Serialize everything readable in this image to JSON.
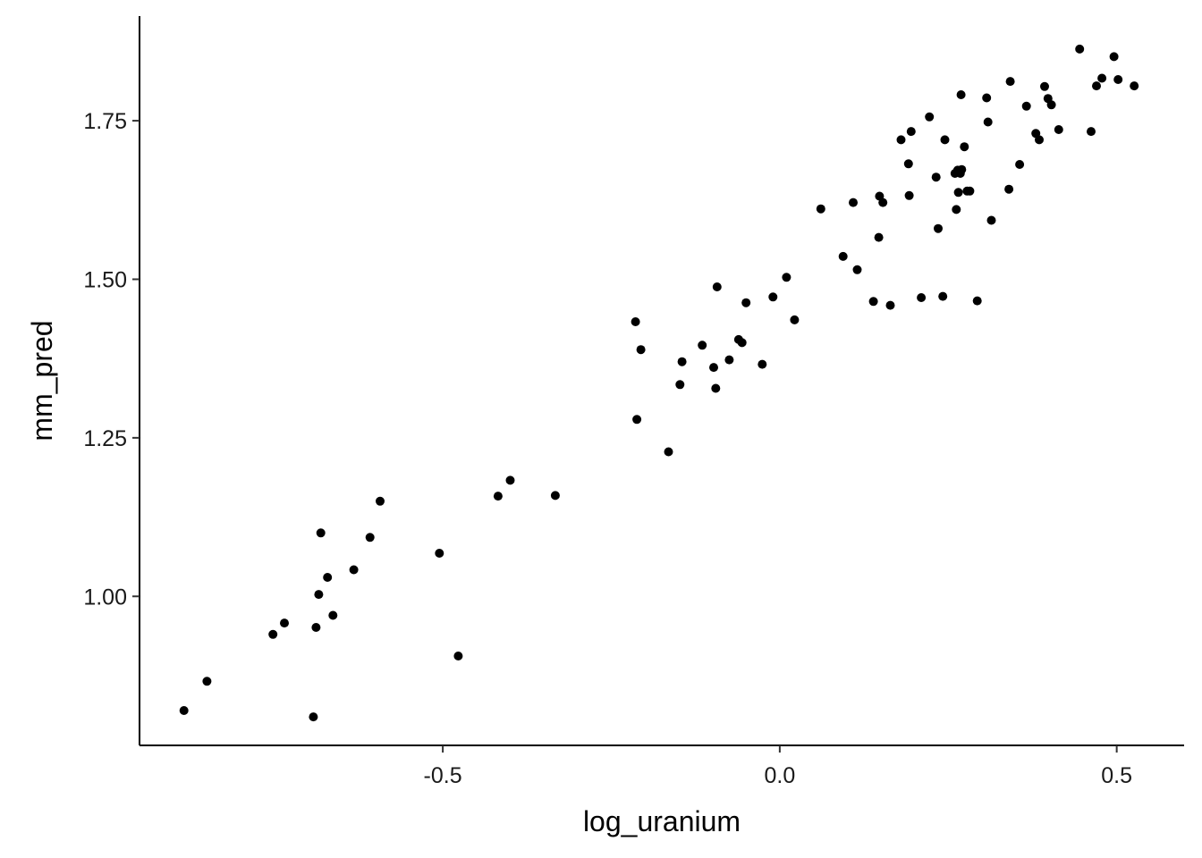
{
  "chart_data": {
    "type": "scatter",
    "xlabel": "log_uranium",
    "ylabel": "mm_pred",
    "xlim": [
      -0.95,
      0.6
    ],
    "ylim": [
      0.765,
      1.915
    ],
    "xticks": [
      -0.5,
      0.0,
      0.5
    ],
    "xtick_labels": [
      "-0.5",
      "0.0",
      "0.5"
    ],
    "yticks": [
      1.0,
      1.25,
      1.5,
      1.75
    ],
    "ytick_labels": [
      "1.00",
      "1.25",
      "1.50",
      "1.75"
    ],
    "grid": false,
    "point_color": "#000000",
    "series": [
      {
        "x": [
          -0.884,
          -0.85,
          -0.752,
          -0.735,
          -0.692,
          -0.688,
          -0.684,
          -0.681,
          -0.671,
          -0.663,
          -0.632,
          -0.608,
          -0.593,
          -0.505,
          -0.477,
          -0.418,
          -0.4,
          -0.333,
          -0.214,
          -0.212,
          -0.206,
          -0.165,
          -0.148,
          -0.145,
          -0.115,
          -0.098,
          -0.095,
          -0.093,
          -0.075,
          -0.061,
          -0.056,
          -0.05,
          -0.026,
          -0.01,
          0.01,
          0.022,
          0.061,
          0.094,
          0.109,
          0.115,
          0.139,
          0.147,
          0.148,
          0.153,
          0.164,
          0.18,
          0.191,
          0.192,
          0.195,
          0.21,
          0.222,
          0.232,
          0.235,
          0.242,
          0.245,
          0.26,
          0.262,
          0.264,
          0.265,
          0.268,
          0.269,
          0.27,
          0.274,
          0.278,
          0.282,
          0.293,
          0.307,
          0.309,
          0.314,
          0.34,
          0.342,
          0.356,
          0.366,
          0.38,
          0.385,
          0.393,
          0.398,
          0.403,
          0.414,
          0.445,
          0.462,
          0.47,
          0.478,
          0.496,
          0.502,
          0.526
        ],
        "y": [
          0.82,
          0.866,
          0.94,
          0.958,
          0.81,
          0.951,
          1.003,
          1.1,
          1.03,
          0.97,
          1.042,
          1.093,
          1.15,
          1.068,
          0.906,
          1.158,
          1.183,
          1.159,
          1.433,
          1.279,
          1.389,
          1.228,
          1.334,
          1.37,
          1.396,
          1.361,
          1.328,
          1.488,
          1.373,
          1.405,
          1.4,
          1.463,
          1.366,
          1.472,
          1.503,
          1.436,
          1.611,
          1.536,
          1.621,
          1.515,
          1.465,
          1.566,
          1.631,
          1.621,
          1.459,
          1.72,
          1.682,
          1.632,
          1.733,
          1.471,
          1.756,
          1.661,
          1.58,
          1.473,
          1.72,
          1.667,
          1.61,
          1.672,
          1.637,
          1.667,
          1.791,
          1.673,
          1.709,
          1.639,
          1.639,
          1.466,
          1.786,
          1.748,
          1.593,
          1.642,
          1.812,
          1.681,
          1.773,
          1.73,
          1.72,
          1.804,
          1.785,
          1.775,
          1.736,
          1.863,
          1.733,
          1.805,
          1.817,
          1.851,
          1.815,
          1.805
        ]
      }
    ]
  }
}
